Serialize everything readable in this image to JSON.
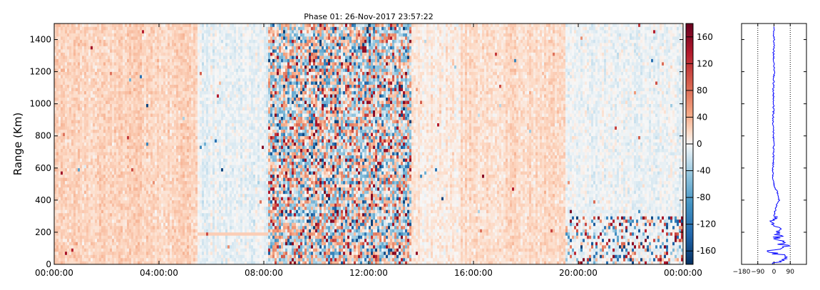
{
  "chart_data": [
    {
      "type": "heatmap",
      "title": "Phase 01: 26-Nov-2017 23:57:22",
      "xlabel": "",
      "ylabel": "Range (Km)",
      "x_ticks": [
        "00:00:00",
        "04:00:00",
        "08:00:00",
        "12:00:00",
        "16:00:00",
        "20:00:00",
        "00:00:00"
      ],
      "y_ticks": [
        0,
        200,
        400,
        600,
        800,
        1000,
        1200,
        1400
      ],
      "xlim_hours": [
        0,
        24
      ],
      "ylim": [
        0,
        1500
      ],
      "colormap": "RdBu_r",
      "value_range": [
        -180,
        180
      ],
      "colorbar_ticks": [
        160,
        120,
        80,
        40,
        0,
        -40,
        -80,
        -120,
        -160
      ],
      "noisy_time_bands_hours": [
        [
          8.2,
          13.6
        ]
      ],
      "regions": [
        {
          "hours": [
            0,
            5.5
          ],
          "tendency": "positive",
          "mean": 22
        },
        {
          "hours": [
            5.5,
            8.2
          ],
          "tendency": "slightly negative",
          "mean": -6
        },
        {
          "hours": [
            8.2,
            13.6
          ],
          "tendency": "random noise",
          "mean": 0
        },
        {
          "hours": [
            13.6,
            15.5
          ],
          "tendency": "slightly positive",
          "mean": 8
        },
        {
          "hours": [
            15.5,
            19.5
          ],
          "tendency": "positive",
          "mean": 18
        },
        {
          "hours": [
            19.5,
            24
          ],
          "tendency": "near zero, noisy below 300 km",
          "mean": -3
        }
      ]
    },
    {
      "type": "line",
      "title": "",
      "x_ticks": [
        -180,
        -90,
        0,
        90
      ],
      "xlim": [
        -180,
        180
      ],
      "ylim": [
        0,
        1500
      ],
      "gridlines_x": [
        -90,
        90
      ],
      "series": [
        {
          "color": "#0000ff",
          "profile": [
            {
              "range": 1480,
              "value": -2
            },
            {
              "range": 1400,
              "value": 0
            },
            {
              "range": 1300,
              "value": -3
            },
            {
              "range": 1200,
              "value": 1
            },
            {
              "range": 1100,
              "value": -4
            },
            {
              "range": 1000,
              "value": -2
            },
            {
              "range": 900,
              "value": -5
            },
            {
              "range": 800,
              "value": -3
            },
            {
              "range": 700,
              "value": -2
            },
            {
              "range": 600,
              "value": -6
            },
            {
              "range": 540,
              "value": -8
            },
            {
              "range": 480,
              "value": 5
            },
            {
              "range": 450,
              "value": 18
            },
            {
              "range": 400,
              "value": 28
            },
            {
              "range": 370,
              "value": 15
            },
            {
              "range": 320,
              "value": 3
            },
            {
              "range": 280,
              "value": -4
            },
            {
              "range": 240,
              "value": 10
            },
            {
              "range": 200,
              "value": 35
            },
            {
              "range": 170,
              "value": 20
            },
            {
              "range": 130,
              "value": 50
            },
            {
              "range": 100,
              "value": 70
            },
            {
              "range": 80,
              "value": -40
            },
            {
              "range": 50,
              "value": 60
            },
            {
              "range": 20,
              "value": 30
            },
            {
              "range": 0,
              "value": 10
            }
          ]
        }
      ]
    }
  ]
}
